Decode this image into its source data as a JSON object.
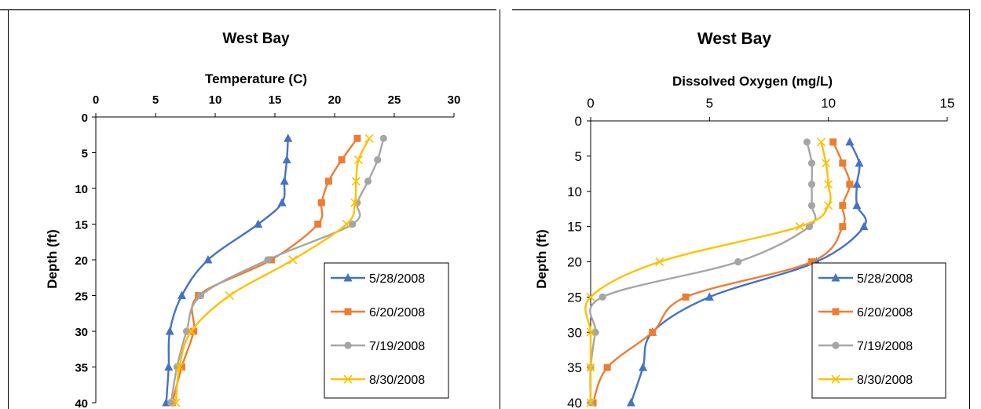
{
  "chart_data": [
    {
      "type": "line",
      "title": "West Bay",
      "xlabel": "Temperature (C)",
      "ylabel": "Depth (ft)",
      "xlim": [
        0,
        30
      ],
      "ylim": [
        0,
        40
      ],
      "x_ticks": [
        0,
        5,
        10,
        15,
        20,
        25,
        30
      ],
      "y_ticks": [
        0,
        5,
        10,
        15,
        20,
        25,
        30,
        35,
        40
      ],
      "x_axis_position": "top",
      "y_axis_inverted": true,
      "grid": false,
      "legend_position": "bottom-right",
      "series": [
        {
          "name": "5/28/2008",
          "color": "#4472C4",
          "marker": "triangle",
          "points": [
            [
              16.1,
              3
            ],
            [
              16.0,
              6
            ],
            [
              15.8,
              9
            ],
            [
              15.6,
              12
            ],
            [
              13.6,
              15
            ],
            [
              9.4,
              20
            ],
            [
              7.2,
              25
            ],
            [
              6.2,
              30
            ],
            [
              6.1,
              35
            ],
            [
              5.9,
              40
            ]
          ]
        },
        {
          "name": "6/20/2008",
          "color": "#ED7D31",
          "marker": "square",
          "points": [
            [
              21.9,
              3
            ],
            [
              20.6,
              6
            ],
            [
              19.5,
              9
            ],
            [
              18.9,
              12
            ],
            [
              18.6,
              15
            ],
            [
              14.7,
              20
            ],
            [
              8.6,
              25
            ],
            [
              8.2,
              30
            ],
            [
              7.2,
              35
            ],
            [
              6.4,
              40
            ]
          ]
        },
        {
          "name": "7/19/2008",
          "color": "#A5A5A5",
          "marker": "circle",
          "points": [
            [
              24.1,
              3
            ],
            [
              23.6,
              6
            ],
            [
              22.8,
              9
            ],
            [
              21.9,
              12
            ],
            [
              21.5,
              15
            ],
            [
              14.4,
              20
            ],
            [
              8.8,
              25
            ],
            [
              7.6,
              30
            ],
            [
              6.8,
              35
            ],
            [
              6.3,
              40
            ]
          ]
        },
        {
          "name": "8/30/2008",
          "color": "#FFC000",
          "marker": "x",
          "points": [
            [
              22.9,
              3
            ],
            [
              22.0,
              6
            ],
            [
              21.8,
              9
            ],
            [
              21.7,
              12
            ],
            [
              21.0,
              15
            ],
            [
              16.5,
              20
            ],
            [
              11.2,
              25
            ],
            [
              8.0,
              30
            ],
            [
              7.0,
              35
            ],
            [
              6.7,
              40
            ]
          ]
        }
      ]
    },
    {
      "type": "line",
      "title": "West Bay",
      "xlabel": "Dissolved Oxygen (mg/L)",
      "ylabel": "Depth (ft)",
      "xlim": [
        0,
        15
      ],
      "ylim": [
        0,
        40
      ],
      "x_ticks": [
        0,
        5,
        10,
        15
      ],
      "y_ticks": [
        0,
        5,
        10,
        15,
        20,
        25,
        30,
        35,
        40
      ],
      "x_axis_position": "top",
      "y_axis_inverted": true,
      "grid": false,
      "legend_position": "bottom-right",
      "series": [
        {
          "name": "5/28/2008",
          "color": "#4472C4",
          "marker": "triangle",
          "points": [
            [
              10.9,
              3
            ],
            [
              11.3,
              6
            ],
            [
              11.2,
              9
            ],
            [
              11.2,
              12
            ],
            [
              11.5,
              15
            ],
            [
              9.5,
              20
            ],
            [
              5.0,
              25
            ],
            [
              2.6,
              30
            ],
            [
              2.2,
              35
            ],
            [
              1.7,
              40
            ]
          ]
        },
        {
          "name": "6/20/2008",
          "color": "#ED7D31",
          "marker": "square",
          "points": [
            [
              10.2,
              3
            ],
            [
              10.6,
              6
            ],
            [
              10.9,
              9
            ],
            [
              10.6,
              12
            ],
            [
              10.6,
              15
            ],
            [
              9.3,
              20
            ],
            [
              4.0,
              25
            ],
            [
              2.6,
              30
            ],
            [
              0.7,
              35
            ],
            [
              0.1,
              40
            ]
          ]
        },
        {
          "name": "7/19/2008",
          "color": "#A5A5A5",
          "marker": "circle",
          "points": [
            [
              9.1,
              3
            ],
            [
              9.3,
              6
            ],
            [
              9.3,
              9
            ],
            [
              9.3,
              12
            ],
            [
              9.2,
              15
            ],
            [
              6.2,
              20
            ],
            [
              0.5,
              25
            ],
            [
              0.2,
              30
            ],
            [
              0.0,
              35
            ],
            [
              0.0,
              40
            ]
          ]
        },
        {
          "name": "8/30/2008",
          "color": "#FFC000",
          "marker": "x",
          "points": [
            [
              9.7,
              3
            ],
            [
              9.9,
              6
            ],
            [
              10.0,
              9
            ],
            [
              10.0,
              12
            ],
            [
              8.8,
              15
            ],
            [
              2.9,
              20
            ],
            [
              0.0,
              25
            ],
            [
              0.0,
              30
            ],
            [
              0.0,
              35
            ],
            [
              0.0,
              40
            ]
          ]
        }
      ]
    }
  ]
}
